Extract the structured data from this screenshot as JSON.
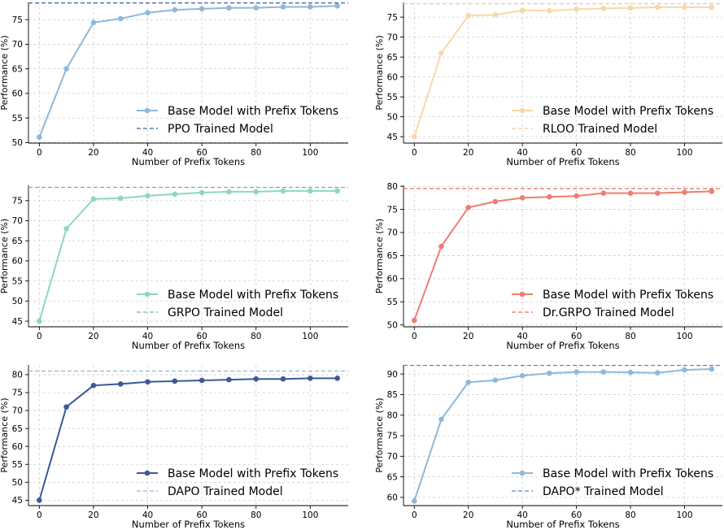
{
  "chart_data": [
    {
      "type": "line",
      "xlabel": "Number of Prefix Tokens",
      "ylabel": "Performance (%)",
      "xlim": [
        -4,
        114
      ],
      "ylim": [
        49.9,
        78.5
      ],
      "xticks": [
        0,
        20,
        40,
        60,
        80,
        100
      ],
      "yticks": [
        50,
        55,
        60,
        65,
        70,
        75
      ],
      "grid": true,
      "legend_position": "lower-right",
      "series": [
        {
          "name": "Base Model with Prefix Tokens",
          "color": "#8fb8d9",
          "x": [
            0,
            10,
            20,
            30,
            40,
            50,
            60,
            70,
            80,
            90,
            100,
            110
          ],
          "values": [
            51.1,
            65.0,
            74.4,
            75.2,
            76.4,
            77.0,
            77.2,
            77.4,
            77.4,
            77.6,
            77.6,
            77.8
          ]
        },
        {
          "name": "PPO Trained Model",
          "color": "#3d5f9e",
          "style": "dashed",
          "hline": 78.4
        }
      ]
    },
    {
      "type": "line",
      "xlabel": "Number of Prefix Tokens",
      "ylabel": "Performance (%)",
      "xlim": [
        -4,
        114
      ],
      "ylim": [
        43.4,
        78.7
      ],
      "xticks": [
        0,
        20,
        40,
        60,
        80,
        100
      ],
      "yticks": [
        45,
        50,
        55,
        60,
        65,
        70,
        75
      ],
      "grid": true,
      "legend_position": "lower-right",
      "series": [
        {
          "name": "Base Model with Prefix Tokens",
          "color": "#f7d8a8",
          "x": [
            0,
            10,
            20,
            30,
            40,
            50,
            60,
            70,
            80,
            90,
            100,
            110
          ],
          "values": [
            45.0,
            66.0,
            75.4,
            75.6,
            76.7,
            76.6,
            77.0,
            77.2,
            77.3,
            77.5,
            77.5,
            77.5
          ]
        },
        {
          "name": "RLOO Trained Model",
          "color": "#edc99a",
          "style": "dashed",
          "hline": 78.4
        }
      ]
    },
    {
      "type": "line",
      "xlabel": "Number of Prefix Tokens",
      "ylabel": "Performance (%)",
      "xlim": [
        -4,
        114
      ],
      "ylim": [
        43.6,
        78.8
      ],
      "xticks": [
        0,
        20,
        40,
        60,
        80,
        100
      ],
      "yticks": [
        45,
        50,
        55,
        60,
        65,
        70,
        75
      ],
      "grid": true,
      "legend_position": "lower-right",
      "series": [
        {
          "name": "Base Model with Prefix Tokens",
          "color": "#8ed6c4",
          "x": [
            0,
            10,
            20,
            30,
            40,
            50,
            60,
            70,
            80,
            90,
            100,
            110
          ],
          "values": [
            45.0,
            68.0,
            75.4,
            75.6,
            76.2,
            76.6,
            77.0,
            77.2,
            77.2,
            77.4,
            77.4,
            77.4
          ]
        },
        {
          "name": "GRPO Trained Model",
          "color": "#5cbf9e",
          "style": "dashed",
          "hline": 78.3
        }
      ]
    },
    {
      "type": "line",
      "xlabel": "Number of Prefix Tokens",
      "ylabel": "Performance (%)",
      "xlim": [
        -4,
        114
      ],
      "ylim": [
        49.6,
        80.2
      ],
      "xticks": [
        0,
        20,
        40,
        60,
        80,
        100
      ],
      "yticks": [
        50,
        55,
        60,
        65,
        70,
        75,
        80
      ],
      "grid": true,
      "legend_position": "lower-right",
      "series": [
        {
          "name": "Base Model with Prefix Tokens",
          "color": "#ee7d72",
          "x": [
            0,
            10,
            20,
            30,
            40,
            50,
            60,
            70,
            80,
            90,
            100,
            110
          ],
          "values": [
            51.0,
            67.0,
            75.4,
            76.7,
            77.5,
            77.7,
            77.9,
            78.5,
            78.5,
            78.5,
            78.7,
            78.9
          ]
        },
        {
          "name": "Dr.GRPO Trained Model",
          "color": "#e96a60",
          "style": "dashed",
          "hline": 79.5
        }
      ]
    },
    {
      "type": "line",
      "xlabel": "Number of Prefix Tokens",
      "ylabel": "Performance (%)",
      "xlim": [
        -4,
        114
      ],
      "ylim": [
        43.5,
        82.7
      ],
      "xticks": [
        0,
        20,
        40,
        60,
        80,
        100
      ],
      "yticks": [
        45,
        50,
        55,
        60,
        65,
        70,
        75,
        80
      ],
      "grid": true,
      "legend_position": "lower-right",
      "series": [
        {
          "name": "Base Model with Prefix Tokens",
          "color": "#3a5a96",
          "x": [
            0,
            10,
            20,
            30,
            40,
            50,
            60,
            70,
            80,
            90,
            100,
            110
          ],
          "values": [
            45.0,
            71.0,
            77.0,
            77.4,
            78.0,
            78.2,
            78.4,
            78.6,
            78.8,
            78.8,
            79.0,
            79.0
          ]
        },
        {
          "name": "DAPO Trained Model",
          "color": "#8fb8d9",
          "style": "dashed",
          "hline": 81.0
        }
      ]
    },
    {
      "type": "line",
      "xlabel": "Number of Prefix Tokens",
      "ylabel": "Performance (%)",
      "xlim": [
        -4,
        114
      ],
      "ylim": [
        58.0,
        92.2
      ],
      "xticks": [
        0,
        20,
        40,
        60,
        80,
        100
      ],
      "yticks": [
        60,
        65,
        70,
        75,
        80,
        85,
        90
      ],
      "grid": true,
      "legend_position": "lower-right",
      "series": [
        {
          "name": "Base Model with Prefix Tokens",
          "color": "#8fb8d9",
          "x": [
            0,
            10,
            20,
            30,
            40,
            50,
            60,
            70,
            80,
            90,
            100,
            110
          ],
          "values": [
            59.1,
            79.0,
            88.0,
            88.5,
            89.6,
            90.2,
            90.5,
            90.5,
            90.4,
            90.3,
            91.0,
            91.2
          ]
        },
        {
          "name": "DAPO* Trained Model",
          "color": "#5f86b8",
          "style": "dashed",
          "hline": 92.1
        }
      ]
    }
  ]
}
